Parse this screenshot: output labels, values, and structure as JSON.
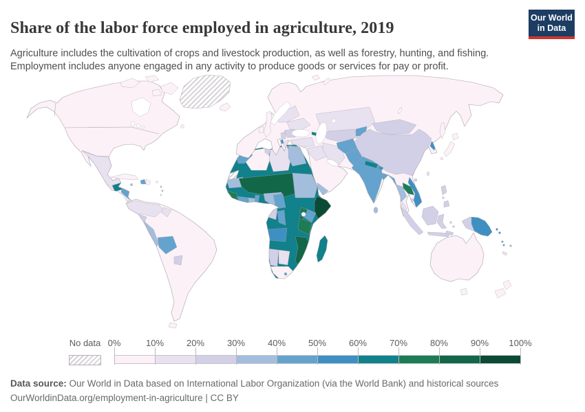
{
  "header": {
    "title": "Share of the labor force employed in agriculture, 2019",
    "subtitle_line1": "Agriculture includes the cultivation of crops and livestock production, as well as forestry, hunting, and fishing.",
    "subtitle_line2": "Employment includes anyone engaged in any activity to produce goods or services for pay or profit.",
    "logo": {
      "line1": "Our World",
      "line2": "in Data",
      "bg_color": "#1d3d63",
      "accent_color": "#d0342c"
    }
  },
  "legend": {
    "no_data_label": "No data",
    "tick_labels": [
      "0%",
      "10%",
      "20%",
      "30%",
      "40%",
      "50%",
      "60%",
      "70%",
      "80%",
      "90%",
      "100%"
    ],
    "bins": [
      {
        "range": "0-10%",
        "color": "#fbf1f7"
      },
      {
        "range": "10-20%",
        "color": "#e8e1ef"
      },
      {
        "range": "20-30%",
        "color": "#d2d0e6"
      },
      {
        "range": "30-40%",
        "color": "#a3bddc"
      },
      {
        "range": "40-50%",
        "color": "#64a3cd"
      },
      {
        "range": "50-60%",
        "color": "#3f90c2"
      },
      {
        "range": "60-70%",
        "color": "#11818b"
      },
      {
        "range": "70-80%",
        "color": "#1d7c55"
      },
      {
        "range": "80-90%",
        "color": "#136749"
      },
      {
        "range": "90-100%",
        "color": "#0b4b36"
      }
    ]
  },
  "footer": {
    "source_label": "Data source:",
    "source_text": " Our World in Data based on International Labor Organization (via the World Bank) and historical sources",
    "license_line": "OurWorldinData.org/employment-in-agriculture | CC BY"
  },
  "chart_data": {
    "type": "choropleth_map",
    "title": "Share of the labor force employed in agriculture",
    "year": 2019,
    "unit": "% of labor force employed in agriculture",
    "legend_bins": [
      "0-10%",
      "10-20%",
      "20-30%",
      "30-40%",
      "40-50%",
      "50-60%",
      "60-70%",
      "70-80%",
      "80-90%",
      "90-100%"
    ],
    "no_data_regions": [
      "Greenland",
      "Western Sahara"
    ],
    "regions": [
      {
        "name": "Canada",
        "bin": "0-10%"
      },
      {
        "name": "United States",
        "bin": "0-10%"
      },
      {
        "name": "Mexico",
        "bin": "10-20%"
      },
      {
        "name": "Guatemala",
        "bin": "60-70%"
      },
      {
        "name": "Honduras",
        "bin": "40-50%"
      },
      {
        "name": "Nicaragua",
        "bin": "40-50%"
      },
      {
        "name": "Cuba",
        "bin": "0-10%"
      },
      {
        "name": "Haiti",
        "bin": "40-50%"
      },
      {
        "name": "Dominican Republic",
        "bin": "0-10%"
      },
      {
        "name": "Panama",
        "bin": "10-20%"
      },
      {
        "name": "Colombia",
        "bin": "10-20%"
      },
      {
        "name": "Venezuela",
        "bin": "0-10%"
      },
      {
        "name": "Ecuador",
        "bin": "20-30%"
      },
      {
        "name": "Peru",
        "bin": "30-40%"
      },
      {
        "name": "Bolivia",
        "bin": "40-50%"
      },
      {
        "name": "Brazil",
        "bin": "0-10%"
      },
      {
        "name": "Paraguay",
        "bin": "20-30%"
      },
      {
        "name": "Chile",
        "bin": "0-10%"
      },
      {
        "name": "Argentina",
        "bin": "0-10%"
      },
      {
        "name": "Uruguay",
        "bin": "0-10%"
      },
      {
        "name": "United Kingdom",
        "bin": "0-10%"
      },
      {
        "name": "France",
        "bin": "0-10%"
      },
      {
        "name": "Spain",
        "bin": "0-10%"
      },
      {
        "name": "Germany",
        "bin": "0-10%"
      },
      {
        "name": "Italy",
        "bin": "0-10%"
      },
      {
        "name": "Poland",
        "bin": "10-20%"
      },
      {
        "name": "Ukraine",
        "bin": "10-20%"
      },
      {
        "name": "Romania",
        "bin": "20-30%"
      },
      {
        "name": "Greece",
        "bin": "10-20%"
      },
      {
        "name": "Albania",
        "bin": "30-40%"
      },
      {
        "name": "Russia",
        "bin": "0-10%"
      },
      {
        "name": "Turkey",
        "bin": "10-20%"
      },
      {
        "name": "Morocco",
        "bin": "30-40%"
      },
      {
        "name": "Algeria",
        "bin": "0-10%"
      },
      {
        "name": "Tunisia",
        "bin": "20-30%"
      },
      {
        "name": "Libya",
        "bin": "10-20%"
      },
      {
        "name": "Egypt",
        "bin": "20-30%"
      },
      {
        "name": "Mauritania",
        "bin": "30-40%"
      },
      {
        "name": "Mali",
        "bin": "70-80%"
      },
      {
        "name": "Niger",
        "bin": "70-80%"
      },
      {
        "name": "Chad",
        "bin": "70-80%"
      },
      {
        "name": "Sudan",
        "bin": "30-40%"
      },
      {
        "name": "Senegal",
        "bin": "60-70%"
      },
      {
        "name": "Guinea",
        "bin": "60-70%"
      },
      {
        "name": "Sierra Leone",
        "bin": "50-60%"
      },
      {
        "name": "Liberia",
        "bin": "40-50%"
      },
      {
        "name": "Cote d'Ivoire",
        "bin": "40-50%"
      },
      {
        "name": "Ghana",
        "bin": "30-40%"
      },
      {
        "name": "Burkina Faso",
        "bin": "60-70%"
      },
      {
        "name": "Nigeria",
        "bin": "30-40%"
      },
      {
        "name": "Cameroon",
        "bin": "40-50%"
      },
      {
        "name": "Central African Republic",
        "bin": "60-70%"
      },
      {
        "name": "South Sudan",
        "bin": "60-70%"
      },
      {
        "name": "Ethiopia",
        "bin": "60-70%"
      },
      {
        "name": "Somalia",
        "bin": "80-90%"
      },
      {
        "name": "Kenya",
        "bin": "50-60%"
      },
      {
        "name": "Uganda",
        "bin": "70-80%"
      },
      {
        "name": "Tanzania",
        "bin": "60-70%"
      },
      {
        "name": "Rwanda",
        "bin": "60-70%"
      },
      {
        "name": "Burundi",
        "bin": "80-90%"
      },
      {
        "name": "Democratic Republic of Congo",
        "bin": "60-70%"
      },
      {
        "name": "Congo",
        "bin": "40-50%"
      },
      {
        "name": "Gabon",
        "bin": "20-30%"
      },
      {
        "name": "Angola",
        "bin": "50-60%"
      },
      {
        "name": "Zambia",
        "bin": "60-70%"
      },
      {
        "name": "Zimbabwe",
        "bin": "60-70%"
      },
      {
        "name": "Malawi",
        "bin": "70-80%"
      },
      {
        "name": "Mozambique",
        "bin": "70-80%"
      },
      {
        "name": "Madagascar",
        "bin": "60-70%"
      },
      {
        "name": "Namibia",
        "bin": "20-30%"
      },
      {
        "name": "Botswana",
        "bin": "20-30%"
      },
      {
        "name": "South Africa",
        "bin": "0-10%"
      },
      {
        "name": "Lesotho",
        "bin": "40-50%"
      },
      {
        "name": "Saudi Arabia",
        "bin": "0-10%"
      },
      {
        "name": "Yemen",
        "bin": "30-40%"
      },
      {
        "name": "Iraq",
        "bin": "10-20%"
      },
      {
        "name": "Iran",
        "bin": "10-20%"
      },
      {
        "name": "Kazakhstan",
        "bin": "10-20%"
      },
      {
        "name": "Uzbekistan",
        "bin": "20-30%"
      },
      {
        "name": "Turkmenistan",
        "bin": "20-30%"
      },
      {
        "name": "Tajikistan",
        "bin": "40-50%"
      },
      {
        "name": "Afghanistan",
        "bin": "40-50%"
      },
      {
        "name": "Georgia",
        "bin": "40-50%"
      },
      {
        "name": "Azerbaijan",
        "bin": "30-40%"
      },
      {
        "name": "Pakistan",
        "bin": "40-50%"
      },
      {
        "name": "India",
        "bin": "40-50%"
      },
      {
        "name": "Nepal",
        "bin": "60-70%"
      },
      {
        "name": "Bhutan",
        "bin": "50-60%"
      },
      {
        "name": "Bangladesh",
        "bin": "30-40%"
      },
      {
        "name": "Sri Lanka",
        "bin": "20-30%"
      },
      {
        "name": "China",
        "bin": "20-30%"
      },
      {
        "name": "Mongolia",
        "bin": "20-30%"
      },
      {
        "name": "North Korea",
        "bin": "50-60%"
      },
      {
        "name": "South Korea",
        "bin": "0-10%"
      },
      {
        "name": "Japan",
        "bin": "0-10%"
      },
      {
        "name": "Myanmar",
        "bin": "40-50%"
      },
      {
        "name": "Thailand",
        "bin": "30-40%"
      },
      {
        "name": "Laos",
        "bin": "60-70%"
      },
      {
        "name": "Vietnam",
        "bin": "30-40%"
      },
      {
        "name": "Cambodia",
        "bin": "30-40%"
      },
      {
        "name": "Malaysia",
        "bin": "10-20%"
      },
      {
        "name": "Indonesia",
        "bin": "20-30%"
      },
      {
        "name": "Philippines",
        "bin": "20-30%"
      },
      {
        "name": "Papua New Guinea",
        "bin": "50-60%"
      },
      {
        "name": "Australia",
        "bin": "0-10%"
      },
      {
        "name": "New Zealand",
        "bin": "0-10%"
      }
    ]
  }
}
